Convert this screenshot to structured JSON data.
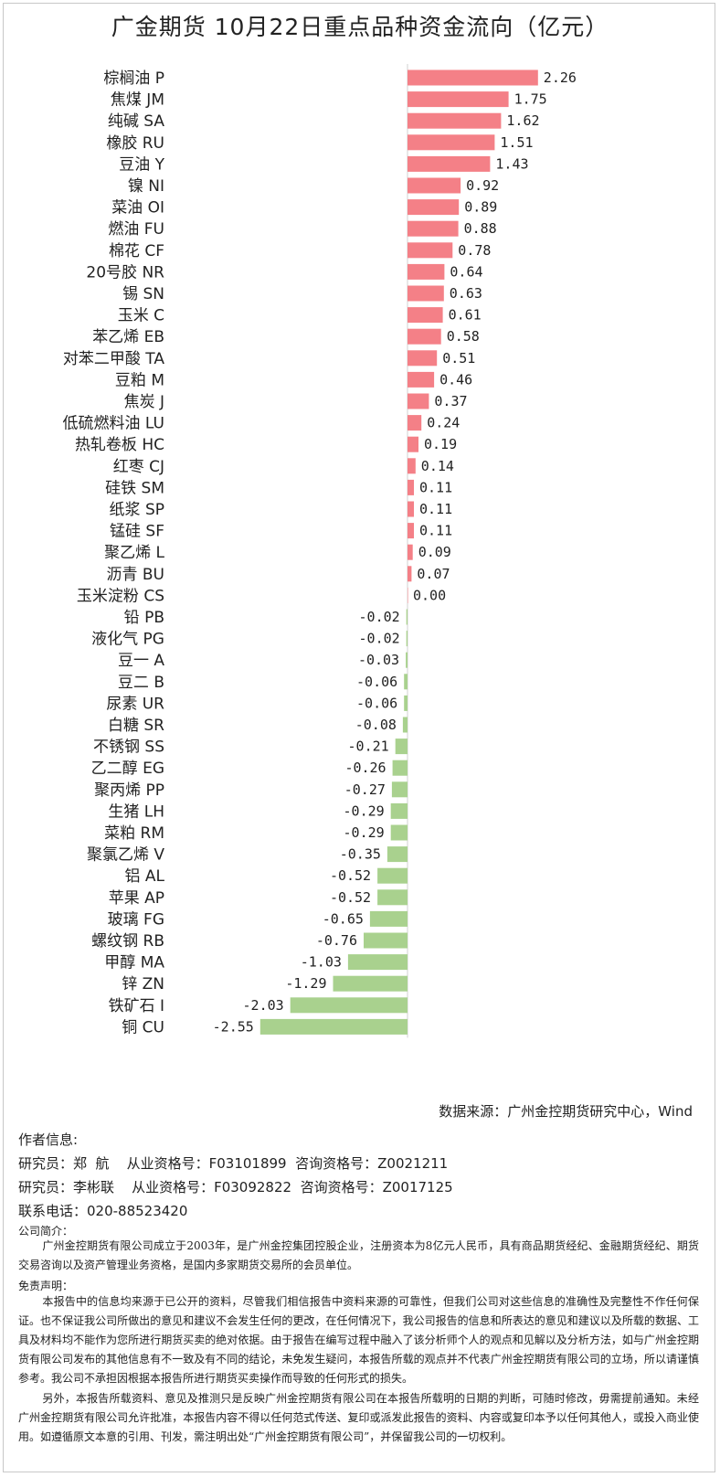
{
  "title": "广金期货  10月22日重点品种资金流向（亿元）",
  "colors": {
    "positive": "#f48087",
    "negative": "#a9d18e",
    "axis": "#d0d0d0"
  },
  "chart_data": {
    "type": "bar",
    "orientation": "horizontal",
    "categories": [
      "棕榈油 P",
      "焦煤 JM",
      "纯碱 SA",
      "橡胶 RU",
      "豆油 Y",
      "镍 NI",
      "菜油 OI",
      "燃油 FU",
      "棉花 CF",
      "20号胶 NR",
      "锡 SN",
      "玉米 C",
      "苯乙烯 EB",
      "对苯二甲酸 TA",
      "豆粕 M",
      "焦炭 J",
      "低硫燃料油 LU",
      "热轧卷板 HC",
      "红枣 CJ",
      "硅铁 SM",
      "纸浆 SP",
      "锰硅 SF",
      "聚乙烯 L",
      "沥青 BU",
      "玉米淀粉 CS",
      "铅 PB",
      "液化气 PG",
      "豆一 A",
      "豆二 B",
      "尿素 UR",
      "白糖 SR",
      "不锈钢 SS",
      "乙二醇 EG",
      "聚丙烯 PP",
      "生猪 LH",
      "菜粕 RM",
      "聚氯乙烯 V",
      "铝 AL",
      "苹果 AP",
      "玻璃 FG",
      "螺纹钢 RB",
      "甲醇 MA",
      "锌 ZN",
      "铁矿石 I",
      "铜 CU"
    ],
    "values": [
      2.26,
      1.75,
      1.62,
      1.51,
      1.43,
      0.92,
      0.89,
      0.88,
      0.78,
      0.64,
      0.63,
      0.61,
      0.58,
      0.51,
      0.46,
      0.37,
      0.24,
      0.19,
      0.14,
      0.11,
      0.11,
      0.11,
      0.09,
      0.07,
      0.0,
      -0.02,
      -0.02,
      -0.03,
      -0.06,
      -0.06,
      -0.08,
      -0.21,
      -0.26,
      -0.27,
      -0.29,
      -0.29,
      -0.35,
      -0.52,
      -0.52,
      -0.65,
      -0.76,
      -1.03,
      -1.29,
      -2.03,
      -2.55
    ],
    "value_labels": [
      "2.26",
      "1.75",
      "1.62",
      "1.51",
      "1.43",
      "0.92",
      "0.89",
      "0.88",
      "0.78",
      "0.64",
      "0.63",
      "0.61",
      "0.58",
      "0.51",
      "0.46",
      "0.37",
      "0.24",
      "0.19",
      "0.14",
      "0.11",
      "0.11",
      "0.11",
      "0.09",
      "0.07",
      "0.00",
      "-0.02",
      "-0.02",
      "-0.03",
      "-0.06",
      "-0.06",
      "-0.08",
      "-0.21",
      "-0.26",
      "-0.27",
      "-0.29",
      "-0.29",
      "-0.35",
      "-0.52",
      "-0.52",
      "-0.65",
      "-0.76",
      "-1.03",
      "-1.29",
      "-2.03",
      "-2.55"
    ],
    "xlim": [
      -2.55,
      2.26
    ],
    "grid": false,
    "legend": "none"
  },
  "source": "数据来源：广州金控期货研究中心，Wind",
  "author_heading": "作者信息:",
  "analysts": [
    "研究员：郑  航    从业资格号：F03101899  咨询资格号：Z0021211",
    "研究员：李彬联    从业资格号：F03092822  咨询资格号：Z0017125"
  ],
  "phone": "联系电话：020-88523420",
  "company_heading": "公司简介：",
  "company_text": "广州金控期货有限公司成立于2003年，是广州金控集团控股企业，注册资本为8亿元人民币，具有商品期货经纪、金融期货经纪、期货交易咨询以及资产管理业务资格，是国内多家期货交易所的会员单位。",
  "disclaimer_heading": "免责声明：",
  "disclaimer_p1": "本报告中的信息均来源于已公开的资料，尽管我们相信报告中资料来源的可靠性，但我们公司对这些信息的准确性及完整性不作任何保证。也不保证我公司所做出的意见和建议不会发生任何的更改，在任何情况下，我公司报告的信息和所表达的意见和建议以及所载的数据、工具及材料均不能作为您所进行期货买卖的绝对依据。由于报告在编写过程中融入了该分析师个人的观点和见解以及分析方法，如与广州金控期货有限公司发布的其他信息有不一致及有不同的结论，未免发生疑问，本报告所载的观点并不代表广州金控期货有限公司的立场，所以请谨慎参考。我公司不承担因根据本报告所进行期货买卖操作而导致的任何形式的损失。",
  "disclaimer_p2": "另外，本报告所载资料、意见及推测只是反映广州金控期货有限公司在本报告所载明的日期的判断，可随时修改，毋需提前通知。未经广州金控期货有限公司允许批准，本报告内容不得以任何范式传送、复印或派发此报告的资料、内容或复印本予以任何其他人，或投入商业使用。如遵循原文本意的引用、刊发，需注明出处“广州金控期货有限公司”，并保留我公司的一切权利。"
}
